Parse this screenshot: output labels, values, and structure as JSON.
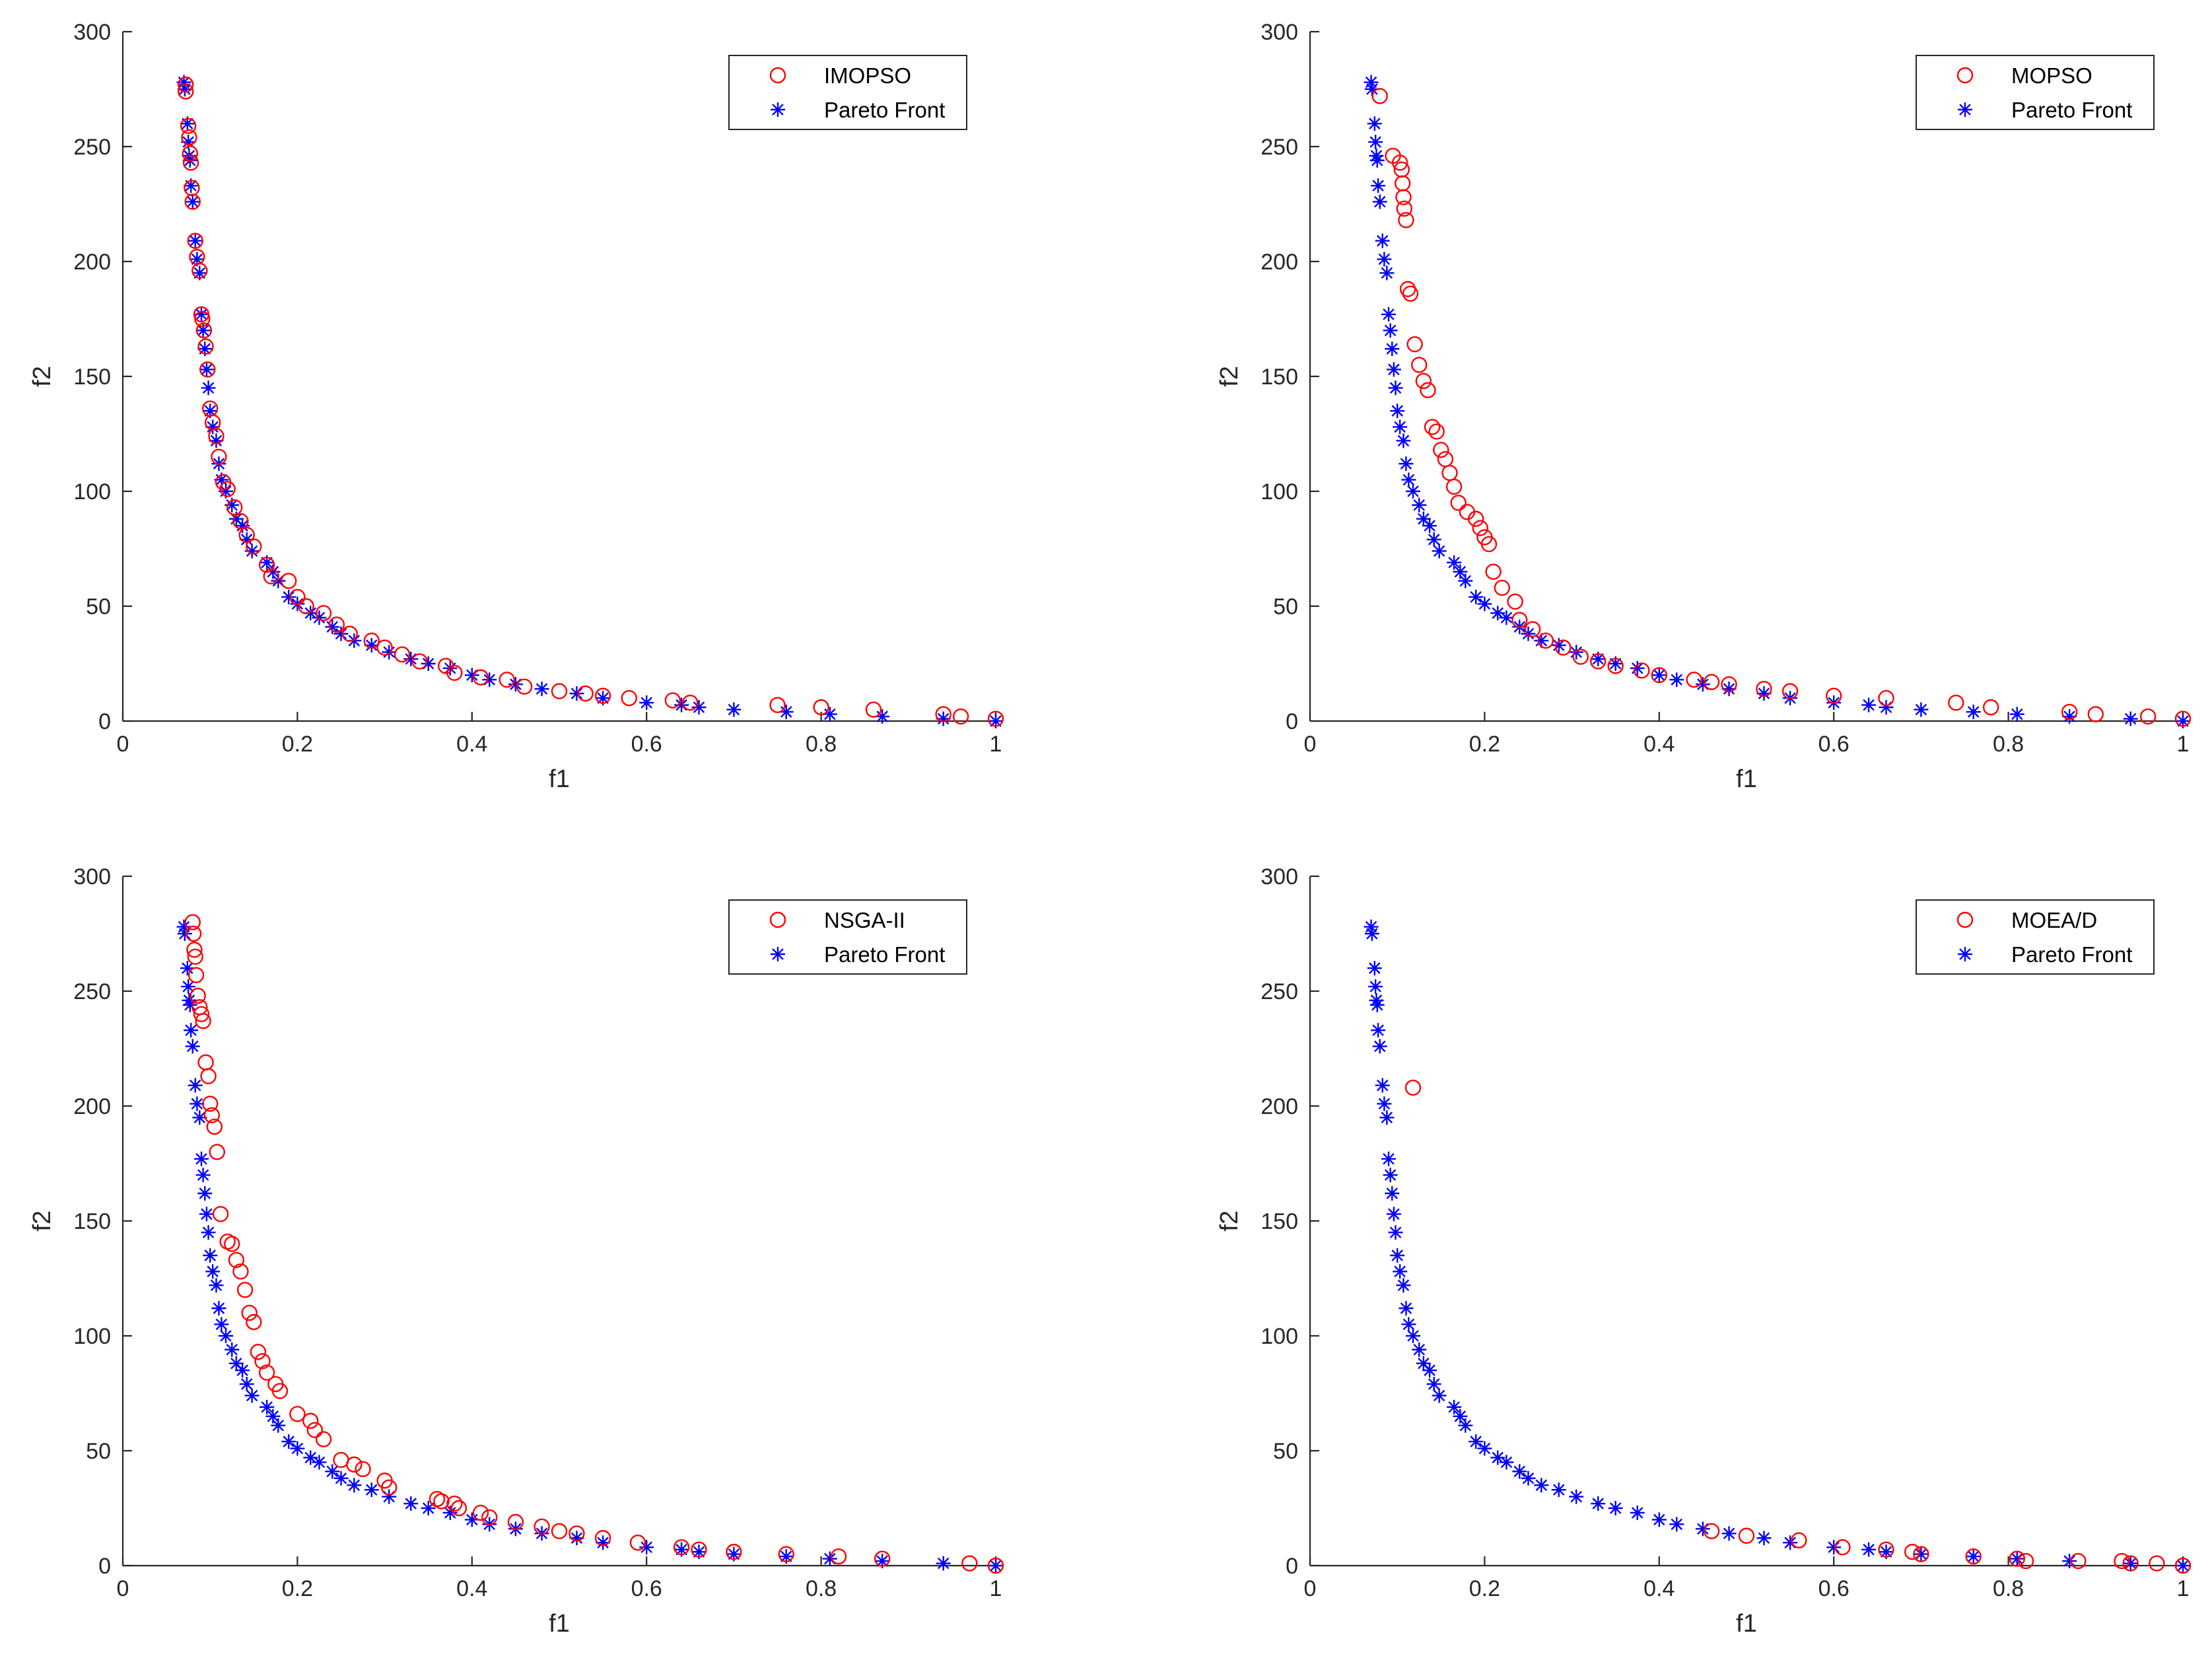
{
  "colors": {
    "algorithm": "#ff0000",
    "pareto": "#0000ff",
    "axis": "#262626"
  },
  "chart_data": [
    {
      "type": "scatter",
      "xlabel": "f1",
      "ylabel": "f2",
      "xlim": [
        0,
        1
      ],
      "ylim": [
        0,
        300
      ],
      "xticks": [
        0,
        0.2,
        0.4,
        0.6,
        0.8,
        1
      ],
      "xtick_labels": [
        "0",
        "0.2",
        "0.4",
        "0.6",
        "0.8",
        "1"
      ],
      "yticks": [
        0,
        50,
        100,
        150,
        200,
        250,
        300
      ],
      "ytick_labels": [
        "0",
        "50",
        "100",
        "150",
        "200",
        "250",
        "300"
      ],
      "legend_position": "top-right",
      "series": [
        {
          "name": "IMOPSO",
          "marker": "circle",
          "color": "#ff0000",
          "x": [
            0.072,
            0.072,
            0.075,
            0.076,
            0.077,
            0.078,
            0.079,
            0.08,
            0.083,
            0.085,
            0.088,
            0.09,
            0.091,
            0.093,
            0.095,
            0.097,
            0.1,
            0.103,
            0.107,
            0.11,
            0.115,
            0.12,
            0.128,
            0.135,
            0.142,
            0.15,
            0.165,
            0.17,
            0.19,
            0.2,
            0.21,
            0.23,
            0.245,
            0.26,
            0.285,
            0.3,
            0.32,
            0.34,
            0.37,
            0.38,
            0.41,
            0.44,
            0.46,
            0.5,
            0.53,
            0.55,
            0.58,
            0.63,
            0.65,
            0.75,
            0.8,
            0.86,
            0.94,
            0.96,
            1.0
          ],
          "y": [
            277,
            274,
            259,
            254,
            247,
            243,
            232,
            226,
            209,
            202,
            196,
            177,
            175,
            170,
            163,
            153,
            136,
            130,
            124,
            115,
            104,
            101,
            93,
            87,
            81,
            76,
            68,
            63,
            61,
            54,
            50,
            47,
            42,
            38,
            35,
            32,
            29,
            26,
            24,
            21,
            19,
            18,
            15,
            13,
            12,
            11,
            10,
            9,
            8,
            7,
            6,
            5,
            3,
            2,
            1
          ]
        },
        {
          "name": "Pareto Front",
          "marker": "star",
          "color": "#0000ff",
          "x": [
            0.07,
            0.071,
            0.074,
            0.075,
            0.076,
            0.077,
            0.078,
            0.08,
            0.083,
            0.085,
            0.088,
            0.09,
            0.092,
            0.094,
            0.096,
            0.098,
            0.1,
            0.103,
            0.107,
            0.11,
            0.113,
            0.118,
            0.125,
            0.13,
            0.137,
            0.142,
            0.148,
            0.165,
            0.172,
            0.178,
            0.19,
            0.2,
            0.215,
            0.225,
            0.24,
            0.25,
            0.265,
            0.285,
            0.305,
            0.33,
            0.35,
            0.375,
            0.4,
            0.42,
            0.45,
            0.48,
            0.52,
            0.55,
            0.6,
            0.64,
            0.66,
            0.7,
            0.76,
            0.81,
            0.87,
            0.94,
            1.0
          ],
          "y": [
            278,
            275,
            260,
            252,
            246,
            244,
            233,
            226,
            209,
            201,
            195,
            177,
            170,
            162,
            153,
            145,
            135,
            128,
            122,
            112,
            105,
            100,
            94,
            88,
            85,
            79,
            74,
            69,
            65,
            61,
            54,
            51,
            47,
            45,
            41,
            38,
            35,
            33,
            30,
            27,
            25,
            23,
            20,
            18,
            16,
            14,
            12,
            10,
            8,
            7,
            6,
            5,
            4,
            3,
            2,
            1,
            0
          ]
        }
      ]
    },
    {
      "type": "scatter",
      "xlabel": "f1",
      "ylabel": "f2",
      "xlim": [
        0,
        1
      ],
      "ylim": [
        0,
        300
      ],
      "xticks": [
        0,
        0.2,
        0.4,
        0.6,
        0.8,
        1
      ],
      "xtick_labels": [
        "0",
        "0.2",
        "0.4",
        "0.6",
        "0.8",
        "1"
      ],
      "yticks": [
        0,
        50,
        100,
        150,
        200,
        250,
        300
      ],
      "ytick_labels": [
        "0",
        "50",
        "100",
        "150",
        "200",
        "250",
        "300"
      ],
      "legend_position": "top-right",
      "series": [
        {
          "name": "MOPSO",
          "marker": "circle",
          "color": "#ff0000",
          "x": [
            0.08,
            0.095,
            0.103,
            0.105,
            0.106,
            0.107,
            0.108,
            0.11,
            0.112,
            0.115,
            0.12,
            0.125,
            0.13,
            0.135,
            0.14,
            0.145,
            0.15,
            0.155,
            0.16,
            0.165,
            0.17,
            0.18,
            0.19,
            0.195,
            0.2,
            0.205,
            0.21,
            0.22,
            0.235,
            0.24,
            0.255,
            0.27,
            0.29,
            0.31,
            0.33,
            0.35,
            0.38,
            0.4,
            0.44,
            0.46,
            0.48,
            0.52,
            0.55,
            0.6,
            0.66,
            0.74,
            0.78,
            0.87,
            0.9,
            0.96,
            1.0
          ],
          "y": [
            272,
            246,
            243,
            240,
            234,
            228,
            223,
            218,
            188,
            186,
            164,
            155,
            148,
            144,
            128,
            126,
            118,
            114,
            108,
            102,
            95,
            91,
            88,
            84,
            80,
            77,
            65,
            58,
            52,
            44,
            40,
            35,
            32,
            28,
            26,
            24,
            22,
            20,
            18,
            17,
            16,
            14,
            13,
            11,
            10,
            8,
            6,
            4,
            3,
            2,
            1
          ]
        },
        {
          "name": "Pareto Front",
          "marker": "star",
          "color": "#0000ff",
          "x": [
            0.07,
            0.071,
            0.074,
            0.075,
            0.076,
            0.077,
            0.078,
            0.08,
            0.083,
            0.085,
            0.088,
            0.09,
            0.092,
            0.094,
            0.096,
            0.098,
            0.1,
            0.103,
            0.107,
            0.11,
            0.113,
            0.118,
            0.125,
            0.13,
            0.137,
            0.142,
            0.148,
            0.165,
            0.172,
            0.178,
            0.19,
            0.2,
            0.215,
            0.225,
            0.24,
            0.25,
            0.265,
            0.285,
            0.305,
            0.33,
            0.35,
            0.375,
            0.4,
            0.42,
            0.45,
            0.48,
            0.52,
            0.55,
            0.6,
            0.64,
            0.66,
            0.7,
            0.76,
            0.81,
            0.87,
            0.94,
            1.0
          ],
          "y": [
            278,
            275,
            260,
            252,
            246,
            244,
            233,
            226,
            209,
            201,
            195,
            177,
            170,
            162,
            153,
            145,
            135,
            128,
            122,
            112,
            105,
            100,
            94,
            88,
            85,
            79,
            74,
            69,
            65,
            61,
            54,
            51,
            47,
            45,
            41,
            38,
            35,
            33,
            30,
            27,
            25,
            23,
            20,
            18,
            16,
            14,
            12,
            10,
            8,
            7,
            6,
            5,
            4,
            3,
            2,
            1,
            0
          ]
        }
      ]
    },
    {
      "type": "scatter",
      "xlabel": "f1",
      "ylabel": "f2",
      "xlim": [
        0,
        1
      ],
      "ylim": [
        0,
        300
      ],
      "xticks": [
        0,
        0.2,
        0.4,
        0.6,
        0.8,
        1
      ],
      "xtick_labels": [
        "0",
        "0.2",
        "0.4",
        "0.6",
        "0.8",
        "1"
      ],
      "yticks": [
        0,
        50,
        100,
        150,
        200,
        250,
        300
      ],
      "ytick_labels": [
        "0",
        "50",
        "100",
        "150",
        "200",
        "250",
        "300"
      ],
      "legend_position": "top-right",
      "series": [
        {
          "name": "NSGA-II",
          "marker": "circle",
          "color": "#ff0000",
          "x": [
            0.08,
            0.081,
            0.082,
            0.083,
            0.084,
            0.086,
            0.088,
            0.09,
            0.092,
            0.095,
            0.098,
            0.1,
            0.102,
            0.105,
            0.108,
            0.112,
            0.12,
            0.125,
            0.13,
            0.135,
            0.14,
            0.145,
            0.15,
            0.155,
            0.16,
            0.165,
            0.175,
            0.18,
            0.2,
            0.215,
            0.22,
            0.23,
            0.25,
            0.265,
            0.275,
            0.3,
            0.305,
            0.36,
            0.365,
            0.38,
            0.385,
            0.41,
            0.42,
            0.45,
            0.48,
            0.5,
            0.52,
            0.55,
            0.59,
            0.64,
            0.66,
            0.7,
            0.76,
            0.82,
            0.87,
            0.97,
            1.0
          ],
          "y": [
            280,
            275,
            268,
            265,
            257,
            248,
            243,
            240,
            237,
            219,
            213,
            201,
            196,
            191,
            180,
            153,
            141,
            140,
            133,
            128,
            120,
            110,
            106,
            93,
            89,
            84,
            79,
            76,
            66,
            63,
            59,
            55,
            46,
            44,
            42,
            37,
            34,
            29,
            28,
            27,
            25,
            23,
            21,
            19,
            17,
            15,
            14,
            12,
            10,
            8,
            7,
            6,
            5,
            4,
            3,
            1,
            0
          ]
        },
        {
          "name": "Pareto Front",
          "marker": "star",
          "color": "#0000ff",
          "x": [
            0.07,
            0.071,
            0.074,
            0.075,
            0.076,
            0.077,
            0.078,
            0.08,
            0.083,
            0.085,
            0.088,
            0.09,
            0.092,
            0.094,
            0.096,
            0.098,
            0.1,
            0.103,
            0.107,
            0.11,
            0.113,
            0.118,
            0.125,
            0.13,
            0.137,
            0.142,
            0.148,
            0.165,
            0.172,
            0.178,
            0.19,
            0.2,
            0.215,
            0.225,
            0.24,
            0.25,
            0.265,
            0.285,
            0.305,
            0.33,
            0.35,
            0.375,
            0.4,
            0.42,
            0.45,
            0.48,
            0.52,
            0.55,
            0.6,
            0.64,
            0.66,
            0.7,
            0.76,
            0.81,
            0.87,
            0.94,
            1.0
          ],
          "y": [
            278,
            275,
            260,
            252,
            246,
            244,
            233,
            226,
            209,
            201,
            195,
            177,
            170,
            162,
            153,
            145,
            135,
            128,
            122,
            112,
            105,
            100,
            94,
            88,
            85,
            79,
            74,
            69,
            65,
            61,
            54,
            51,
            47,
            45,
            41,
            38,
            35,
            33,
            30,
            27,
            25,
            23,
            20,
            18,
            16,
            14,
            12,
            10,
            8,
            7,
            6,
            5,
            4,
            3,
            2,
            1,
            0
          ]
        }
      ]
    },
    {
      "type": "scatter",
      "xlabel": "f1",
      "ylabel": "f2",
      "xlim": [
        0,
        1
      ],
      "ylim": [
        0,
        300
      ],
      "xticks": [
        0,
        0.2,
        0.4,
        0.6,
        0.8,
        1
      ],
      "xtick_labels": [
        "0",
        "0.2",
        "0.4",
        "0.6",
        "0.8",
        "1"
      ],
      "yticks": [
        0,
        50,
        100,
        150,
        200,
        250,
        300
      ],
      "ytick_labels": [
        "0",
        "50",
        "100",
        "150",
        "200",
        "250",
        "300"
      ],
      "legend_position": "top-right",
      "series": [
        {
          "name": "MOEA/D",
          "marker": "circle",
          "color": "#ff0000",
          "x": [
            0.118,
            0.46,
            0.5,
            0.56,
            0.61,
            0.66,
            0.69,
            0.7,
            0.76,
            0.81,
            0.82,
            0.88,
            0.93,
            0.94,
            0.97,
            1.0
          ],
          "y": [
            208,
            15,
            13,
            11,
            8,
            7,
            6,
            5,
            4,
            3,
            2,
            2,
            2,
            1,
            1,
            0
          ]
        },
        {
          "name": "Pareto Front",
          "marker": "star",
          "color": "#0000ff",
          "x": [
            0.07,
            0.071,
            0.074,
            0.075,
            0.076,
            0.077,
            0.078,
            0.08,
            0.083,
            0.085,
            0.088,
            0.09,
            0.092,
            0.094,
            0.096,
            0.098,
            0.1,
            0.103,
            0.107,
            0.11,
            0.113,
            0.118,
            0.125,
            0.13,
            0.137,
            0.142,
            0.148,
            0.165,
            0.172,
            0.178,
            0.19,
            0.2,
            0.215,
            0.225,
            0.24,
            0.25,
            0.265,
            0.285,
            0.305,
            0.33,
            0.35,
            0.375,
            0.4,
            0.42,
            0.45,
            0.48,
            0.52,
            0.55,
            0.6,
            0.64,
            0.66,
            0.7,
            0.76,
            0.81,
            0.87,
            0.94,
            1.0
          ],
          "y": [
            278,
            275,
            260,
            252,
            246,
            244,
            233,
            226,
            209,
            201,
            195,
            177,
            170,
            162,
            153,
            145,
            135,
            128,
            122,
            112,
            105,
            100,
            94,
            88,
            85,
            79,
            74,
            69,
            65,
            61,
            54,
            51,
            47,
            45,
            41,
            38,
            35,
            33,
            30,
            27,
            25,
            23,
            20,
            18,
            16,
            14,
            12,
            10,
            8,
            7,
            6,
            5,
            4,
            3,
            2,
            1,
            0
          ]
        }
      ]
    }
  ]
}
